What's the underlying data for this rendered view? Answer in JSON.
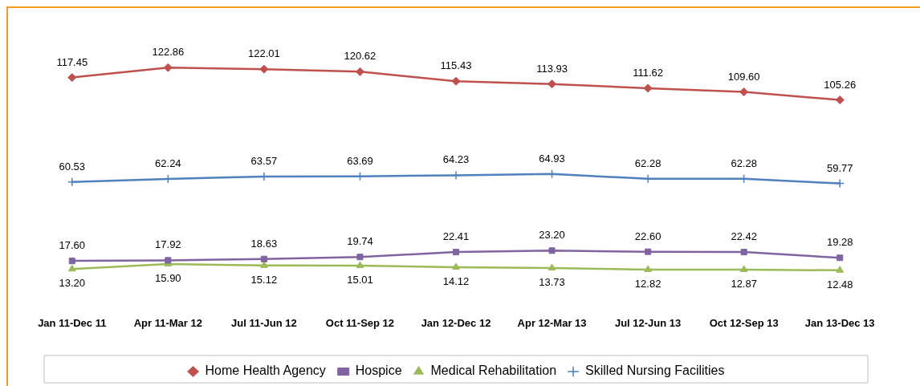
{
  "chart_data": {
    "type": "line",
    "categories": [
      "Jan 11-Dec 11",
      "Apr 11-Mar 12",
      "Jul 11-Jun 12",
      "Oct 11-Sep 12",
      "Jan 12-Dec 12",
      "Apr 12-Mar 13",
      "Jul 12-Jun 13",
      "Oct 12-Sep 13",
      "Jan 13-Dec 13"
    ],
    "series": [
      {
        "name": "Home Health Agency",
        "color": "#c0504d",
        "marker": "diamond",
        "values": [
          117.45,
          122.86,
          122.01,
          120.62,
          115.43,
          113.93,
          111.62,
          109.6,
          105.26
        ],
        "value_labels": [
          "117.45",
          "122.86",
          "122.01",
          "120.62",
          "115.43",
          "113.93",
          "111.62",
          "109.60",
          "105.26"
        ]
      },
      {
        "name": "Hospice",
        "color": "#8064a2",
        "marker": "square",
        "values": [
          17.6,
          17.92,
          18.63,
          19.74,
          22.41,
          23.2,
          22.6,
          22.42,
          19.28
        ],
        "value_labels": [
          "17.60",
          "17.92",
          "18.63",
          "19.74",
          "22.41",
          "23.20",
          "22.60",
          "22.42",
          "19.28"
        ]
      },
      {
        "name": "Medical Rehabilitation",
        "color": "#9bbb59",
        "marker": "triangle",
        "values": [
          13.2,
          15.9,
          15.12,
          15.01,
          14.12,
          13.73,
          12.82,
          12.87,
          12.48
        ],
        "value_labels": [
          "13.20",
          "15.90",
          "15.12",
          "15.01",
          "14.12",
          "13.73",
          "12.82",
          "12.87",
          "12.48"
        ]
      },
      {
        "name": "Skilled Nursing Facilities",
        "color": "#4f81bd",
        "marker": "cross",
        "values": [
          60.53,
          62.24,
          63.57,
          63.69,
          64.23,
          64.93,
          62.28,
          62.28,
          59.77
        ],
        "value_labels": [
          "60.53",
          "62.24",
          "63.57",
          "63.69",
          "64.23",
          "64.93",
          "62.28",
          "62.28",
          "59.77"
        ]
      }
    ],
    "data_labels": true,
    "legend": "bottom",
    "grid": false,
    "tick_labels": "x",
    "line_style": "solid"
  }
}
